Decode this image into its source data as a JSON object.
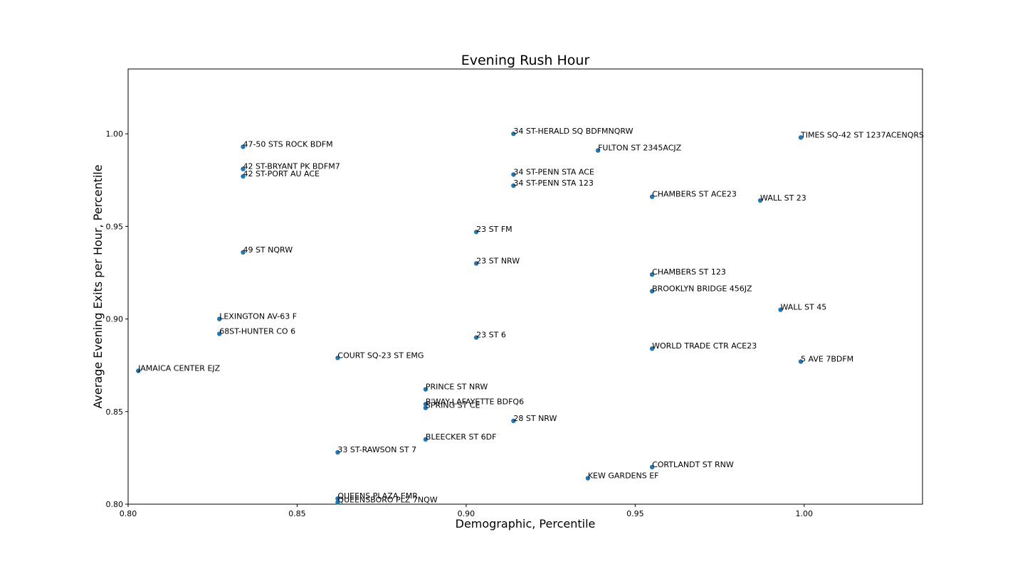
{
  "chart_data": {
    "type": "scatter",
    "title": "Evening Rush Hour",
    "xlabel": "Demographic, Percentile",
    "ylabel": "Average Evening Exits per Hour, Percentile",
    "xlim": [
      0.8,
      1.035
    ],
    "ylim": [
      0.8,
      1.035
    ],
    "xticks": [
      0.8,
      0.85,
      0.9,
      0.95,
      1.0
    ],
    "yticks": [
      0.8,
      0.85,
      0.9,
      0.95,
      1.0
    ],
    "xtick_labels": [
      "0.80",
      "0.85",
      "0.90",
      "0.95",
      "1.00"
    ],
    "ytick_labels": [
      "0.80",
      "0.85",
      "0.90",
      "0.95",
      "1.00"
    ],
    "grid": false,
    "point_color": "#1f77b4",
    "points": [
      {
        "label": "34 ST-HERALD SQ BDFMNQRW",
        "x": 0.914,
        "y": 1.0
      },
      {
        "label": "TIMES SQ-42 ST 1237ACENQRS",
        "x": 0.999,
        "y": 0.998
      },
      {
        "label": "47-50 STS ROCK BDFM",
        "x": 0.834,
        "y": 0.993
      },
      {
        "label": "FULTON ST 2345ACJZ",
        "x": 0.939,
        "y": 0.991
      },
      {
        "label": "42 ST-BRYANT PK BDFM7",
        "x": 0.834,
        "y": 0.981
      },
      {
        "label": "34 ST-PENN STA ACE",
        "x": 0.914,
        "y": 0.978
      },
      {
        "label": "42 ST-PORT AU ACE",
        "x": 0.834,
        "y": 0.977
      },
      {
        "label": "34 ST-PENN STA 123",
        "x": 0.914,
        "y": 0.972
      },
      {
        "label": "CHAMBERS ST ACE23",
        "x": 0.955,
        "y": 0.966
      },
      {
        "label": "WALL ST 23",
        "x": 0.987,
        "y": 0.964
      },
      {
        "label": "23 ST FM",
        "x": 0.903,
        "y": 0.947
      },
      {
        "label": "49 ST NQRW",
        "x": 0.834,
        "y": 0.936
      },
      {
        "label": "23 ST NRW",
        "x": 0.903,
        "y": 0.93
      },
      {
        "label": "CHAMBERS ST 123",
        "x": 0.955,
        "y": 0.924
      },
      {
        "label": "BROOKLYN BRIDGE 456JZ",
        "x": 0.955,
        "y": 0.915
      },
      {
        "label": "WALL ST 45",
        "x": 0.993,
        "y": 0.905
      },
      {
        "label": "LEXINGTON AV-63 F",
        "x": 0.827,
        "y": 0.9
      },
      {
        "label": "68ST-HUNTER CO 6",
        "x": 0.827,
        "y": 0.892
      },
      {
        "label": "23 ST 6",
        "x": 0.903,
        "y": 0.89
      },
      {
        "label": "WORLD TRADE CTR ACE23",
        "x": 0.955,
        "y": 0.884
      },
      {
        "label": "COURT SQ-23 ST EMG",
        "x": 0.862,
        "y": 0.879
      },
      {
        "label": "5 AVE 7BDFM",
        "x": 0.999,
        "y": 0.877
      },
      {
        "label": "JAMAICA CENTER EJZ",
        "x": 0.803,
        "y": 0.872
      },
      {
        "label": "PRINCE ST NRW",
        "x": 0.888,
        "y": 0.862
      },
      {
        "label": "B'WAY-LAFAYETTE BDFQ6",
        "x": 0.888,
        "y": 0.854
      },
      {
        "label": "SPRING ST CE",
        "x": 0.888,
        "y": 0.852
      },
      {
        "label": "28 ST NRW",
        "x": 0.914,
        "y": 0.845
      },
      {
        "label": "BLEECKER ST 6DF",
        "x": 0.888,
        "y": 0.835
      },
      {
        "label": "33 ST-RAWSON ST 7",
        "x": 0.862,
        "y": 0.828
      },
      {
        "label": "CORTLANDT ST RNW",
        "x": 0.955,
        "y": 0.82
      },
      {
        "label": "KEW GARDENS EF",
        "x": 0.936,
        "y": 0.814
      },
      {
        "label": "QUEENS PLAZA EMR",
        "x": 0.862,
        "y": 0.803
      },
      {
        "label": "QUEENSBORO PLZ 7NQW",
        "x": 0.862,
        "y": 0.801
      }
    ]
  }
}
